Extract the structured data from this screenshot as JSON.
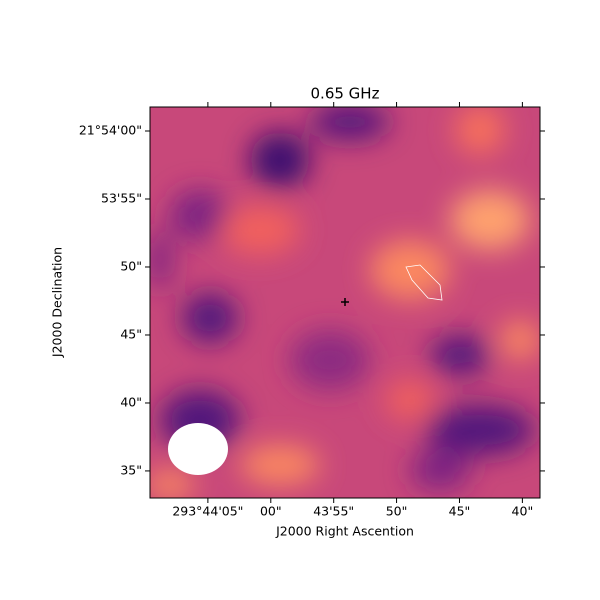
{
  "chart_data": {
    "type": "image",
    "title": "0.65 GHz",
    "xlabel": "J2000 Right Ascention",
    "ylabel": "J2000 Declination",
    "xlim": [
      293.736,
      293.727389
    ],
    "ylim": [
      21.892503,
      21.90049
    ],
    "xticks": [
      {
        "value": 293.734722,
        "label": "293°44'05\""
      },
      {
        "value": 293.733333,
        "label": "00\""
      },
      {
        "value": 293.731944,
        "label": "43'55\""
      },
      {
        "value": 293.730556,
        "label": "50\""
      },
      {
        "value": 293.729167,
        "label": "45\""
      },
      {
        "value": 293.727778,
        "label": "40\""
      }
    ],
    "yticks": [
      {
        "value": 21.9,
        "label": "21°54'00\""
      },
      {
        "value": 21.898611,
        "label": "53'55\""
      },
      {
        "value": 21.897222,
        "label": "50\""
      },
      {
        "value": 21.895833,
        "label": "45\""
      },
      {
        "value": 21.894444,
        "label": "40\""
      },
      {
        "value": 21.893056,
        "label": "35\""
      }
    ]
  }
}
